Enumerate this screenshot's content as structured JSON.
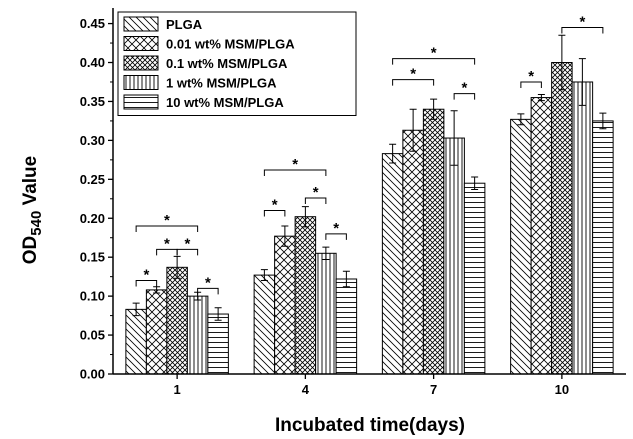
{
  "chart_data": {
    "type": "bar",
    "title": "",
    "xlabel": "Incubated time(days)",
    "ylabel_parts": {
      "prefix": "OD",
      "subscript": "540",
      "suffix": " Value"
    },
    "categories": [
      "1",
      "4",
      "7",
      "10"
    ],
    "ylim": [
      0,
      0.47
    ],
    "yticks": [
      "0.00",
      "0.05",
      "0.10",
      "0.15",
      "0.20",
      "0.25",
      "0.30",
      "0.35",
      "0.40",
      "0.45"
    ],
    "legend_position": "top-left",
    "grid": false,
    "series": [
      {
        "name": "PLGA",
        "pattern": "diag-back",
        "values": [
          0.083,
          0.127,
          0.283,
          0.327
        ],
        "errors": [
          0.008,
          0.007,
          0.012,
          0.007
        ]
      },
      {
        "name": "0.01 wt% MSM/PLGA",
        "pattern": "cross",
        "values": [
          0.108,
          0.177,
          0.313,
          0.355
        ],
        "errors": [
          0.004,
          0.013,
          0.027,
          0.004
        ]
      },
      {
        "name": "0.1 wt% MSM/PLGA",
        "pattern": "cross-dense",
        "values": [
          0.137,
          0.202,
          0.34,
          0.4
        ],
        "errors": [
          0.014,
          0.013,
          0.013,
          0.035
        ]
      },
      {
        "name": "1 wt% MSM/PLGA",
        "pattern": "vertical",
        "values": [
          0.1,
          0.155,
          0.303,
          0.375
        ],
        "errors": [
          0.005,
          0.008,
          0.035,
          0.03
        ]
      },
      {
        "name": "10 wt% MSM/PLGA",
        "pattern": "horizontal",
        "values": [
          0.077,
          0.122,
          0.245,
          0.325
        ],
        "errors": [
          0.008,
          0.01,
          0.008,
          0.01
        ]
      }
    ],
    "significance": [
      {
        "group": 0,
        "from": 0,
        "to": 1,
        "text": "*",
        "level": 0.12
      },
      {
        "group": 0,
        "from": 1,
        "to": 2,
        "text": "*",
        "level": 0.16
      },
      {
        "group": 0,
        "from": 2,
        "to": 3,
        "text": "*",
        "level": 0.16
      },
      {
        "group": 0,
        "from": 3,
        "to": 4,
        "text": "*",
        "level": 0.11
      },
      {
        "group": 0,
        "from": 0,
        "to": 3,
        "text": "*",
        "level": 0.19
      },
      {
        "group": 1,
        "from": 0,
        "to": 1,
        "text": "*",
        "level": 0.21
      },
      {
        "group": 1,
        "from": 2,
        "to": 3,
        "text": "*",
        "level": 0.226
      },
      {
        "group": 1,
        "from": 3,
        "to": 4,
        "text": "*",
        "level": 0.18
      },
      {
        "group": 1,
        "from": 0,
        "to": 3,
        "text": "*",
        "level": 0.262
      },
      {
        "group": 2,
        "from": 0,
        "to": 2,
        "text": "*",
        "level": 0.378
      },
      {
        "group": 2,
        "from": 3,
        "to": 4,
        "text": "*",
        "level": 0.36
      },
      {
        "group": 2,
        "from": 0,
        "to": 4,
        "text": "*",
        "level": 0.405
      },
      {
        "group": 3,
        "from": 0,
        "to": 1,
        "text": "*",
        "level": 0.375
      },
      {
        "group": 3,
        "from": 2,
        "to": 4,
        "text": "*",
        "level": 0.445
      }
    ]
  }
}
